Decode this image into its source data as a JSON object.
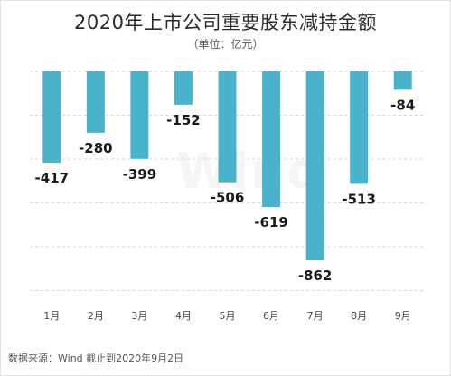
{
  "title": "2020年上市公司重要股东减持金额",
  "subtitle": "（单位：亿元）",
  "source": "数据来源：Wind  截止到2020年9月2日",
  "watermark": "Wind",
  "colors": {
    "bar": "#4ab3cc",
    "grid": "#d6d6d6",
    "label": "#1a1a1a",
    "tick": "#444444"
  },
  "chart_data": {
    "type": "bar",
    "title": "2020年上市公司重要股东减持金额",
    "subtitle": "（单位：亿元）",
    "categories": [
      "1月",
      "2月",
      "3月",
      "4月",
      "5月",
      "6月",
      "7月",
      "8月",
      "9月"
    ],
    "values": [
      -417,
      -280,
      -399,
      -152,
      -506,
      -619,
      -862,
      -513,
      -84
    ],
    "data_labels": [
      "-417",
      "-280",
      "-399",
      "-152",
      "-506",
      "-619",
      "-862",
      "-513",
      "-84"
    ],
    "xlabel": "",
    "ylabel": "",
    "ylim": [
      -1000,
      0
    ],
    "grid": true,
    "grid_style": "dashed horizontal",
    "legend": "none",
    "category_axis_position": "bottom"
  }
}
